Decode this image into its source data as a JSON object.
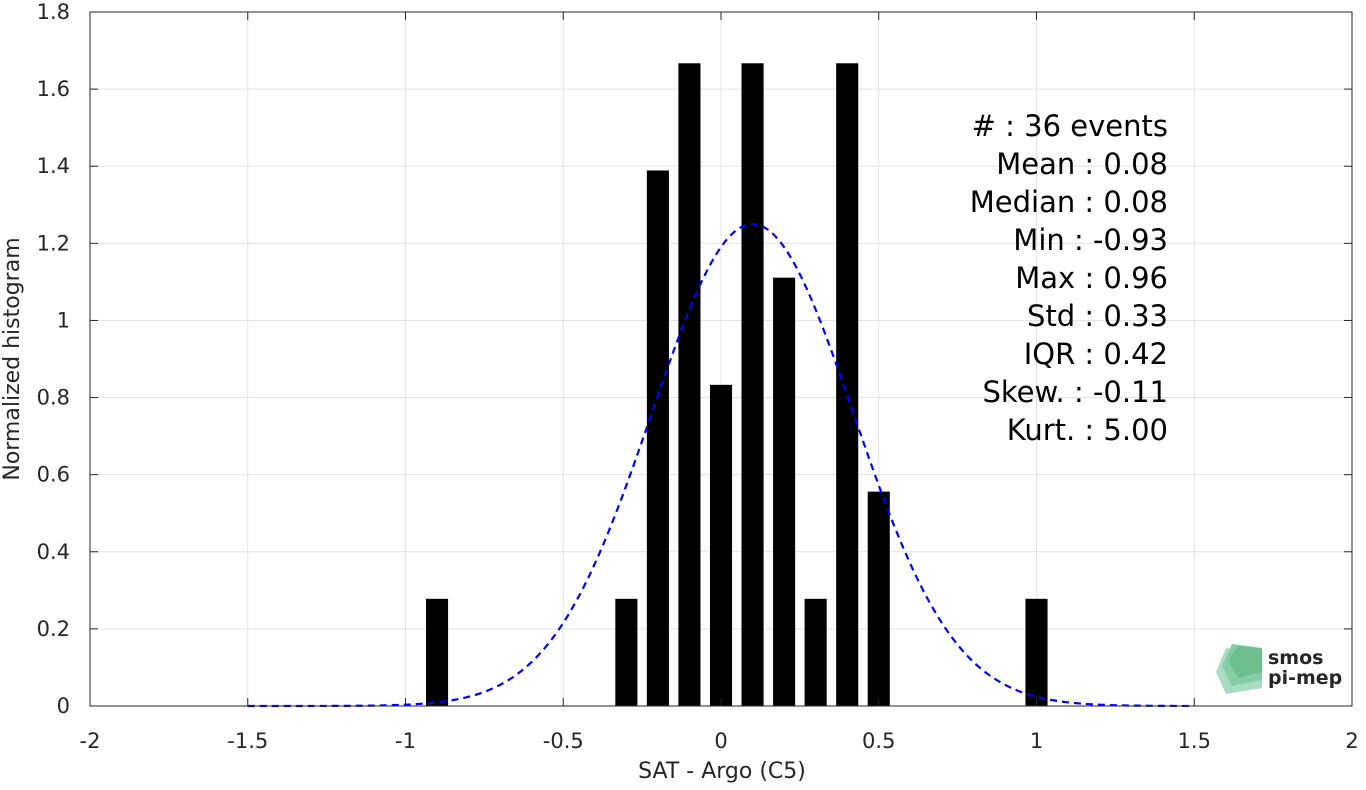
{
  "chart_data": {
    "type": "bar",
    "xlabel": "SAT - Argo (C5)",
    "ylabel": "Normalized histogram",
    "xlim": [
      -2,
      2
    ],
    "ylim": [
      0,
      1.8
    ],
    "xticks": [
      -2,
      -1.5,
      -1,
      -0.5,
      0,
      0.5,
      1,
      1.5,
      2
    ],
    "xtick_labels": [
      "-2",
      "-1.5",
      "-1",
      "-0.5",
      "0",
      "0.5",
      "1",
      "1.5",
      "2"
    ],
    "yticks": [
      0,
      0.2,
      0.4,
      0.6,
      0.8,
      1,
      1.2,
      1.4,
      1.6,
      1.8
    ],
    "ytick_labels": [
      "0",
      "0.2",
      "0.4",
      "0.6",
      "0.8",
      "1",
      "1.2",
      "1.4",
      "1.6",
      "1.8"
    ],
    "grid": true,
    "bar_width": 0.07,
    "bars": [
      {
        "x": -0.9,
        "value": 0.278
      },
      {
        "x": -0.3,
        "value": 0.278
      },
      {
        "x": -0.2,
        "value": 1.389
      },
      {
        "x": -0.1,
        "value": 1.667
      },
      {
        "x": 0.0,
        "value": 0.833
      },
      {
        "x": 0.1,
        "value": 1.667
      },
      {
        "x": 0.2,
        "value": 1.111
      },
      {
        "x": 0.3,
        "value": 0.278
      },
      {
        "x": 0.4,
        "value": 1.667
      },
      {
        "x": 0.5,
        "value": 0.556
      },
      {
        "x": 1.0,
        "value": 0.278
      }
    ],
    "fit_curve": {
      "style": "dashed",
      "color": "#0000ff",
      "x_range": [
        -1.5,
        1.5
      ],
      "peak_x": 0.1,
      "peak_y": 1.25,
      "sigma": 0.32
    },
    "bar_color": "#000000",
    "annotation_lines": [
      "#  : 36 events",
      "Mean : 0.08",
      "Median : 0.08",
      "Min : -0.93",
      "Max : 0.96",
      "Std : 0.33",
      "IQR : 0.42",
      "Skew. : -0.11",
      "Kurt. : 5.00"
    ]
  },
  "logo": {
    "line1": "smos",
    "line2": "pi-mep",
    "color": "#6dbf8f"
  }
}
